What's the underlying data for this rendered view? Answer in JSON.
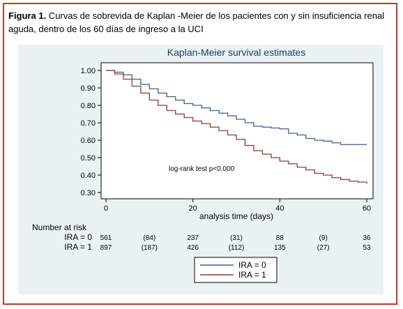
{
  "figure": {
    "label": "Figura 1.",
    "text": " Curvas de sobrevida de Kaplan -Meier de los pacientes con y sin insuficiencia renal aguda, dentro de los 60 días de ingreso a la UCI"
  },
  "colors": {
    "frame": "#c0392b",
    "panel": "#eaf2f3",
    "ira0": "#3d5f8c",
    "ira1": "#8b3a3a"
  },
  "chart_data": {
    "type": "line",
    "title": "Kaplan-Meier survival estimates",
    "xlabel": "analysis time (days)",
    "ylabel": "",
    "xlim": [
      0,
      60
    ],
    "ylim": [
      0.3,
      1.0
    ],
    "xticks": [
      "0",
      "20",
      "40",
      "60"
    ],
    "xtick_values": [
      0,
      20,
      40,
      60
    ],
    "yticks": [
      "1.00",
      "0.90",
      "0.80",
      "0.70",
      "0.60",
      "0.50",
      "0.40",
      "0.30"
    ],
    "ytick_values": [
      1.0,
      0.9,
      0.8,
      0.7,
      0.6,
      0.5,
      0.4,
      0.3
    ],
    "annotation": {
      "text": "log-rank test p<0.000",
      "x": 21,
      "y": 0.41
    },
    "legend": {
      "placement": "bottom-center",
      "entries": [
        "IRA = 0",
        "IRA = 1"
      ]
    },
    "series": [
      {
        "name": "IRA = 0",
        "x": [
          0,
          2,
          4,
          6,
          8,
          10,
          12,
          14,
          16,
          18,
          20,
          22,
          24,
          26,
          28,
          30,
          32,
          34,
          36,
          38,
          40,
          42,
          44,
          46,
          48,
          50,
          52,
          54,
          56,
          58,
          60
        ],
        "y": [
          1.0,
          0.99,
          0.975,
          0.95,
          0.92,
          0.895,
          0.87,
          0.85,
          0.83,
          0.81,
          0.8,
          0.785,
          0.77,
          0.755,
          0.74,
          0.72,
          0.7,
          0.68,
          0.675,
          0.67,
          0.665,
          0.64,
          0.63,
          0.61,
          0.6,
          0.595,
          0.585,
          0.575,
          0.575,
          0.575,
          0.575
        ]
      },
      {
        "name": "IRA = 1",
        "x": [
          0,
          2,
          4,
          6,
          8,
          10,
          12,
          14,
          16,
          18,
          20,
          22,
          24,
          26,
          28,
          30,
          32,
          34,
          36,
          38,
          40,
          42,
          44,
          46,
          48,
          50,
          52,
          54,
          56,
          58,
          60
        ],
        "y": [
          1.0,
          0.98,
          0.95,
          0.91,
          0.87,
          0.83,
          0.8,
          0.77,
          0.75,
          0.73,
          0.71,
          0.695,
          0.675,
          0.655,
          0.63,
          0.605,
          0.57,
          0.54,
          0.52,
          0.5,
          0.48,
          0.465,
          0.445,
          0.43,
          0.41,
          0.4,
          0.385,
          0.375,
          0.365,
          0.36,
          0.35
        ]
      }
    ],
    "risk_table": {
      "title": "Number at risk",
      "rows": [
        {
          "label": "IRA = 0",
          "values": [
            "561",
            "(84)",
            "237",
            "(31)",
            "88",
            "(9)",
            "36"
          ]
        },
        {
          "label": "IRA = 1",
          "values": [
            "897",
            "(187)",
            "426",
            "(112)",
            "135",
            "(27)",
            "53"
          ]
        }
      ],
      "x": [
        0,
        10,
        20,
        30,
        40,
        50,
        60
      ]
    }
  }
}
